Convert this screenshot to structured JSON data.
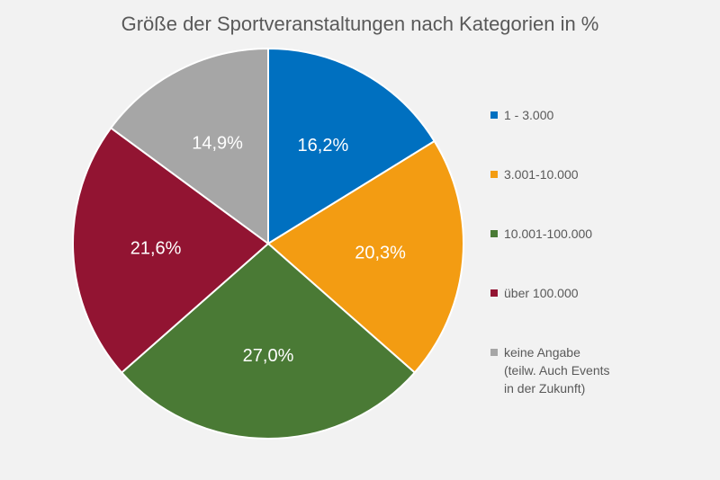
{
  "chart_data": {
    "type": "pie",
    "title": "Größe der Sportveranstaltungen nach Kategorien in %",
    "categories": [
      "1 - 3.000",
      "3.001-10.000",
      "10.001-100.000",
      "über 100.000",
      "keine Angabe\n(teilw. Auch Events\nin der Zukunft)"
    ],
    "values": [
      16.2,
      20.3,
      27.0,
      21.6,
      14.9
    ],
    "data_labels": [
      "16,2%",
      "20,3%",
      "27,0%",
      "21,6%",
      "14,9%"
    ],
    "colors": [
      "#0070c0",
      "#f39c12",
      "#4a7a35",
      "#921432",
      "#a6a6a6"
    ],
    "unit": "%",
    "legend_position": "right",
    "start_angle": "12 o'clock, clockwise"
  }
}
